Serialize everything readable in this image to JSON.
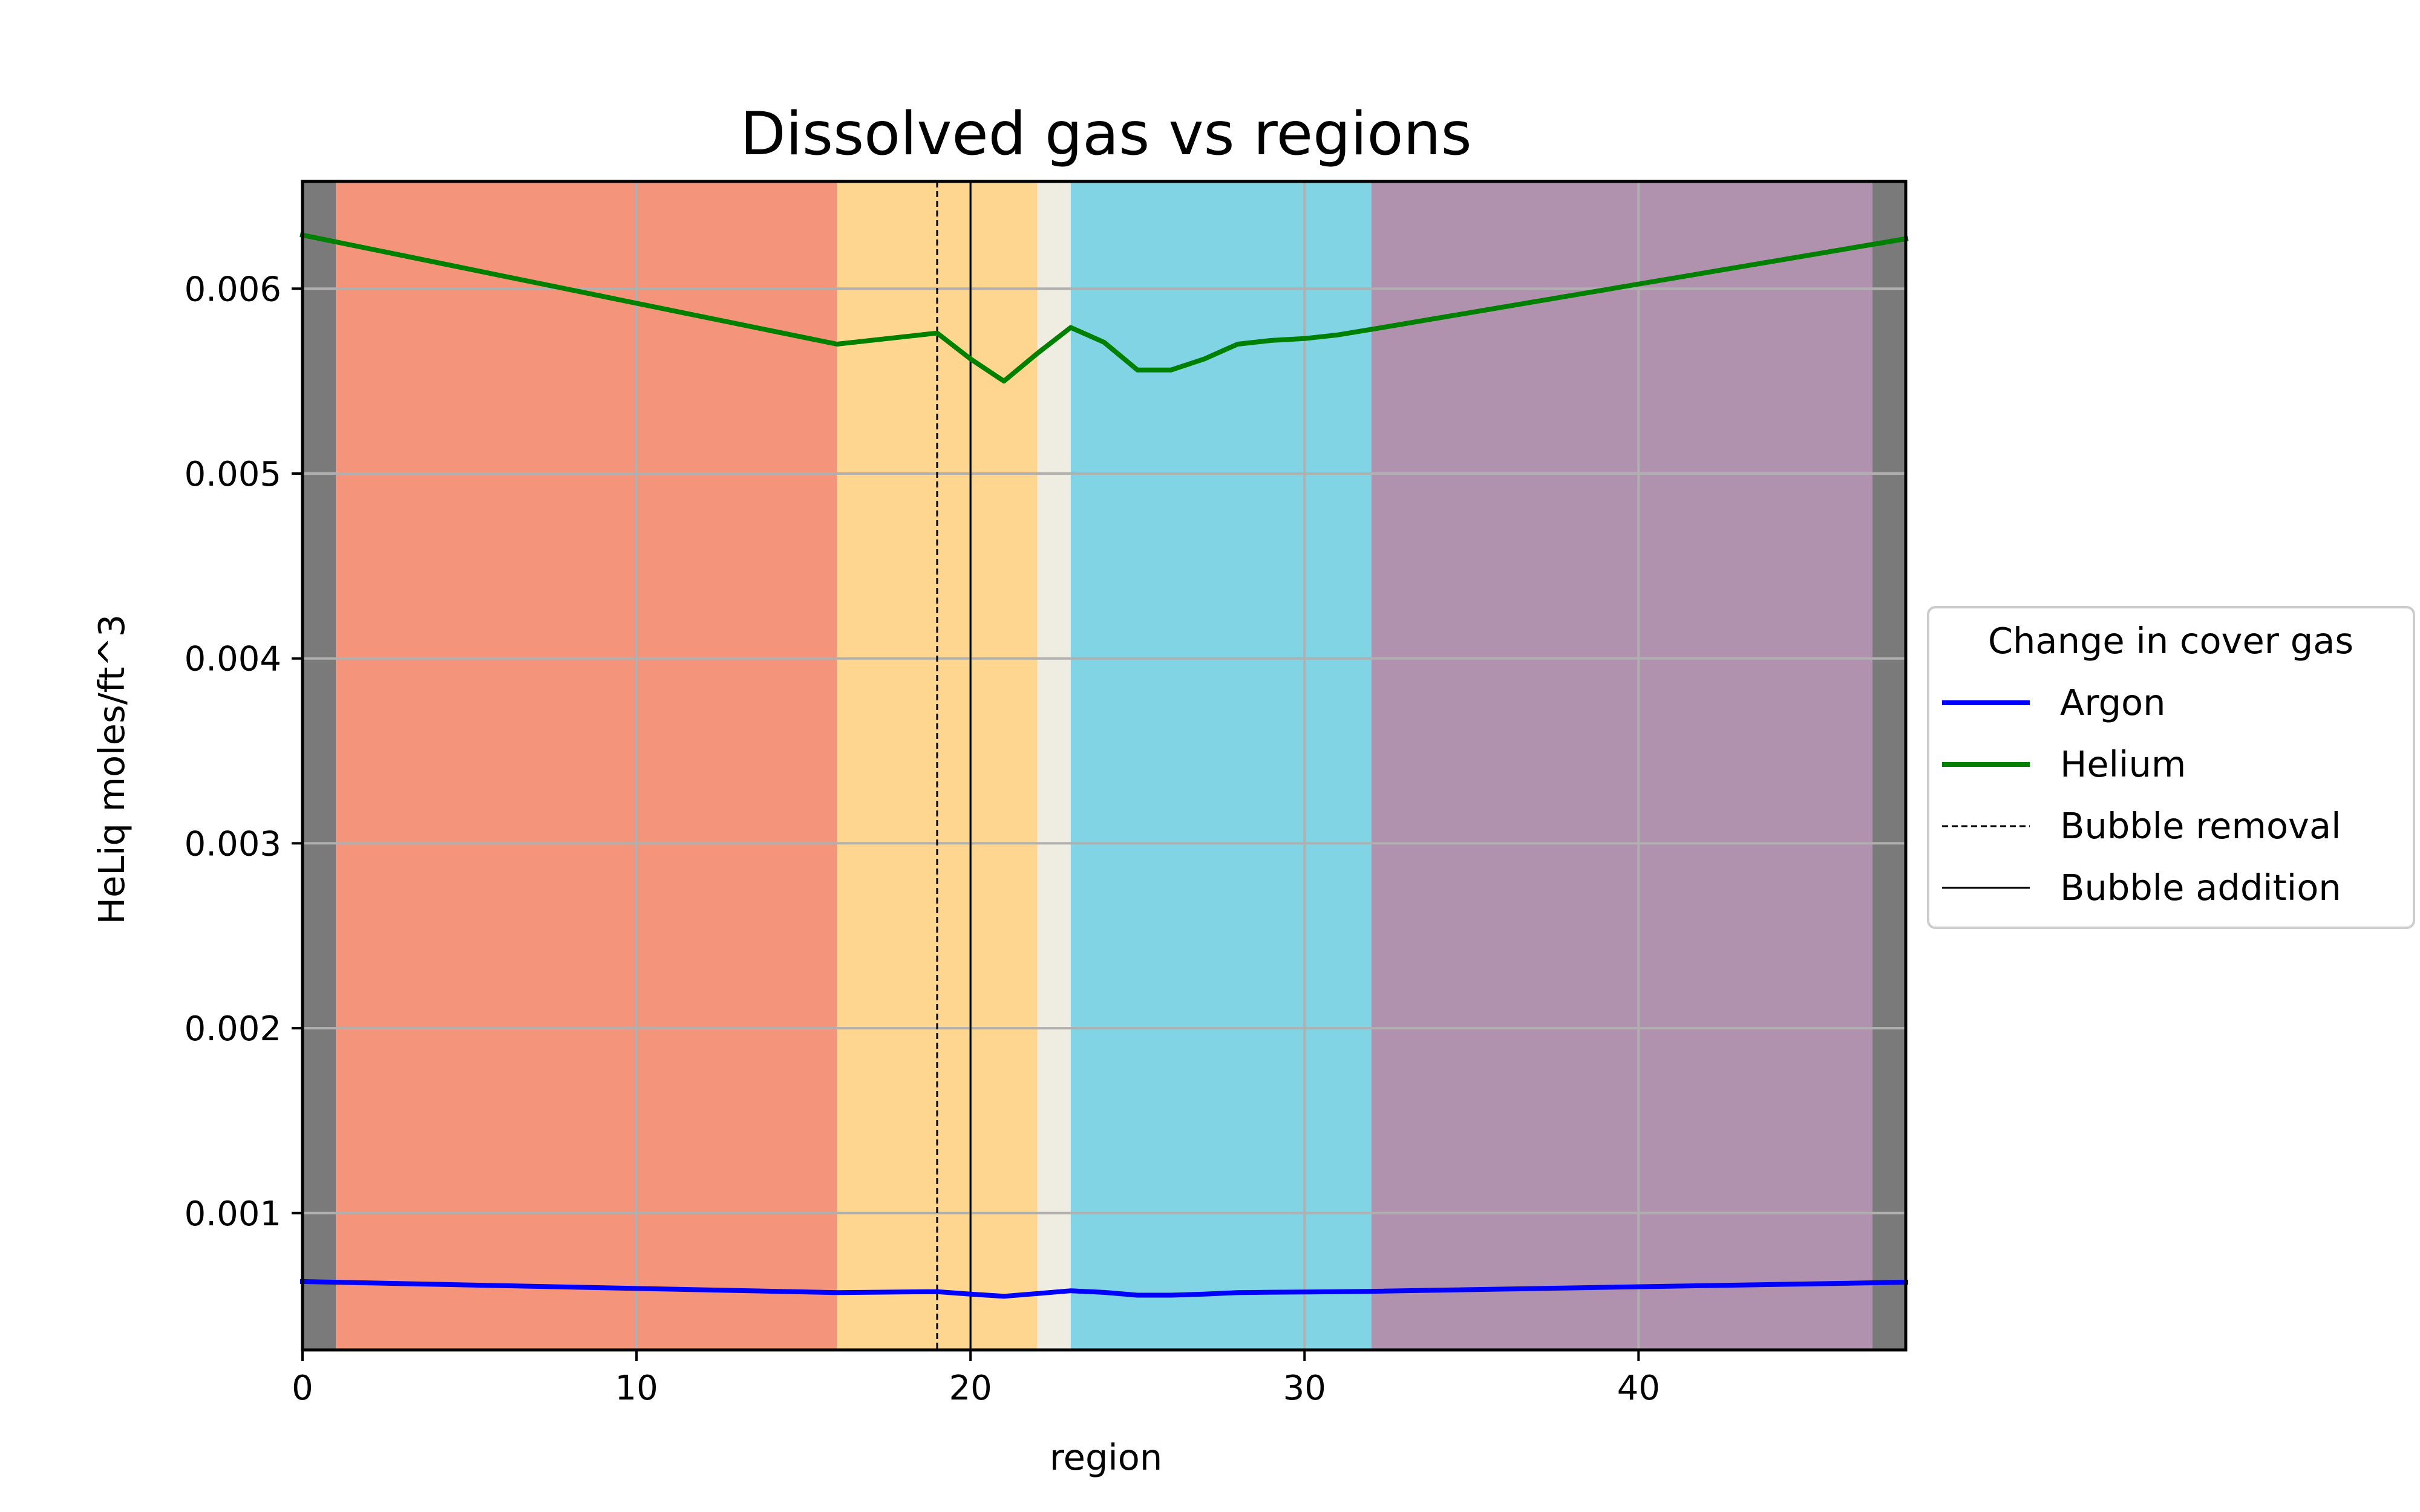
{
  "chart_data": {
    "type": "line",
    "title": "Dissolved gas vs regions",
    "xlabel": "region",
    "ylabel": "HeLiq moles/ft^3",
    "xlim": [
      0,
      48
    ],
    "ylim": [
      0.00026,
      0.00658
    ],
    "xticks": [
      0,
      10,
      20,
      30,
      40
    ],
    "yticks": [
      0.001,
      0.002,
      0.003,
      0.004,
      0.005,
      0.006
    ],
    "ytick_labels": [
      "0.001",
      "0.002",
      "0.003",
      "0.004",
      "0.005",
      "0.006"
    ],
    "grid": true,
    "legend_placement": "center-right-outside",
    "legend_title": "Change in cover gas",
    "background_regions": [
      {
        "x0": 0,
        "x1": 1,
        "color": "#7a7a7a"
      },
      {
        "x0": 1,
        "x1": 16,
        "color": "#f4957b"
      },
      {
        "x0": 16,
        "x1": 22,
        "color": "#fed68f"
      },
      {
        "x0": 22,
        "x1": 23,
        "color": "#efece1"
      },
      {
        "x0": 23,
        "x1": 32,
        "color": "#80d4e4"
      },
      {
        "x0": 32,
        "x1": 47,
        "color": "#b192ae"
      },
      {
        "x0": 47,
        "x1": 48,
        "color": "#7a7a7a"
      }
    ],
    "series": [
      {
        "name": "Argon",
        "color": "#0000ff",
        "style": "solid",
        "x": [
          0,
          16,
          19,
          20,
          21,
          22,
          23,
          24,
          25,
          26,
          27,
          28,
          29,
          30,
          31,
          32,
          48
        ],
        "values": [
          0.00063,
          0.00057,
          0.000575,
          0.000562,
          0.00055,
          0.000565,
          0.00058,
          0.000571,
          0.000556,
          0.000556,
          0.000562,
          0.00057,
          0.000572,
          0.000573,
          0.000575,
          0.000577,
          0.000626
        ]
      },
      {
        "name": "Helium",
        "color": "#008000",
        "style": "solid",
        "x": [
          0,
          16,
          19,
          20,
          21,
          22,
          23,
          24,
          25,
          26,
          27,
          28,
          29,
          30,
          31,
          32,
          48
        ],
        "values": [
          0.00629,
          0.0057,
          0.00576,
          0.00562,
          0.0055,
          0.00565,
          0.00579,
          0.00571,
          0.00556,
          0.00556,
          0.00562,
          0.0057,
          0.00572,
          0.00573,
          0.00575,
          0.00578,
          0.00627
        ]
      }
    ],
    "vlines": [
      {
        "name": "Bubble removal",
        "x": 19,
        "style": "dashed",
        "color": "#000000"
      },
      {
        "name": "Bubble addition",
        "x": 20,
        "style": "solid",
        "color": "#000000"
      }
    ]
  }
}
